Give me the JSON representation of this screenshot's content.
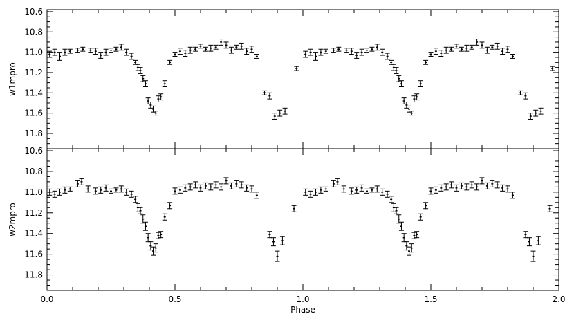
{
  "chart_data": [
    {
      "type": "scatter",
      "title": "",
      "xlabel": "",
      "ylabel": "w1mpro",
      "xlim": [
        0.0,
        2.0
      ],
      "ylim": [
        11.95,
        10.58
      ],
      "y_inverted": true,
      "x_ticks": [],
      "y_ticks": [
        "10.6",
        "10.8",
        "11.0",
        "11.2",
        "11.4",
        "11.6",
        "11.8"
      ],
      "y_tick_values": [
        10.6,
        10.8,
        11.0,
        11.2,
        11.4,
        11.6,
        11.8
      ],
      "error_bars": true,
      "period_repeat": 1.0,
      "series": [
        {
          "x": [
            0.01,
            0.03,
            0.05,
            0.07,
            0.09,
            0.12,
            0.14,
            0.17,
            0.19,
            0.21,
            0.23,
            0.25,
            0.27,
            0.29,
            0.31,
            0.33,
            0.345,
            0.355,
            0.365,
            0.375,
            0.385,
            0.395,
            0.405,
            0.415,
            0.425,
            0.435,
            0.445,
            0.46,
            0.48,
            0.5,
            0.52,
            0.54,
            0.56,
            0.58,
            0.6,
            0.62,
            0.64,
            0.66,
            0.68,
            0.7,
            0.72,
            0.74,
            0.76,
            0.78,
            0.8,
            0.82,
            0.85,
            0.87,
            0.89,
            0.91,
            0.93,
            0.975
          ],
          "y": [
            11.02,
            11.0,
            11.04,
            11.0,
            10.99,
            10.98,
            10.97,
            10.98,
            10.99,
            11.03,
            11.0,
            10.98,
            10.97,
            10.95,
            11.0,
            11.04,
            11.1,
            11.15,
            11.18,
            11.26,
            11.31,
            11.48,
            11.52,
            11.56,
            11.6,
            11.46,
            11.44,
            11.31,
            11.1,
            11.02,
            10.99,
            11.01,
            10.98,
            10.97,
            10.94,
            10.97,
            10.96,
            10.95,
            10.9,
            10.93,
            10.98,
            10.95,
            10.94,
            10.99,
            10.97,
            11.04,
            11.4,
            11.43,
            11.63,
            11.6,
            11.58,
            11.16
          ],
          "err": [
            0.03,
            0.03,
            0.04,
            0.03,
            0.02,
            0.02,
            0.02,
            0.02,
            0.03,
            0.03,
            0.03,
            0.02,
            0.02,
            0.03,
            0.03,
            0.03,
            0.02,
            0.03,
            0.03,
            0.03,
            0.03,
            0.03,
            0.03,
            0.03,
            0.02,
            0.03,
            0.03,
            0.03,
            0.02,
            0.02,
            0.03,
            0.03,
            0.03,
            0.02,
            0.02,
            0.02,
            0.03,
            0.02,
            0.03,
            0.03,
            0.03,
            0.02,
            0.03,
            0.03,
            0.03,
            0.02,
            0.02,
            0.03,
            0.03,
            0.03,
            0.03,
            0.02
          ]
        }
      ]
    },
    {
      "type": "scatter",
      "title": "",
      "xlabel": "Phase",
      "ylabel": "w2mpro",
      "xlim": [
        0.0,
        2.0
      ],
      "ylim": [
        11.95,
        10.58
      ],
      "y_inverted": true,
      "x_ticks": [
        "0.0",
        "0.5",
        "1.0",
        "1.5",
        "2.0"
      ],
      "x_tick_values": [
        0.0,
        0.5,
        1.0,
        1.5,
        2.0
      ],
      "y_ticks": [
        "10.6",
        "10.8",
        "11.0",
        "11.2",
        "11.4",
        "11.6",
        "11.8"
      ],
      "y_tick_values": [
        10.6,
        10.8,
        11.0,
        11.2,
        11.4,
        11.6,
        11.8
      ],
      "error_bars": true,
      "period_repeat": 1.0,
      "series": [
        {
          "x": [
            0.01,
            0.03,
            0.05,
            0.07,
            0.09,
            0.12,
            0.135,
            0.16,
            0.19,
            0.21,
            0.23,
            0.25,
            0.27,
            0.29,
            0.31,
            0.33,
            0.345,
            0.355,
            0.365,
            0.375,
            0.385,
            0.395,
            0.405,
            0.415,
            0.425,
            0.435,
            0.445,
            0.46,
            0.48,
            0.5,
            0.52,
            0.54,
            0.56,
            0.58,
            0.6,
            0.62,
            0.64,
            0.66,
            0.68,
            0.7,
            0.72,
            0.74,
            0.76,
            0.78,
            0.8,
            0.82,
            0.87,
            0.885,
            0.9,
            0.92,
            0.965
          ],
          "y": [
            11.0,
            11.02,
            11.0,
            10.98,
            10.97,
            10.92,
            10.9,
            10.97,
            10.99,
            10.98,
            10.96,
            10.99,
            10.98,
            10.97,
            11.0,
            11.02,
            11.07,
            11.15,
            11.18,
            11.26,
            11.33,
            11.44,
            11.52,
            11.57,
            11.54,
            11.42,
            11.41,
            11.24,
            11.13,
            10.99,
            10.98,
            10.96,
            10.95,
            10.93,
            10.96,
            10.94,
            10.95,
            10.93,
            10.95,
            10.89,
            10.94,
            10.92,
            10.93,
            10.96,
            10.97,
            11.03,
            11.41,
            11.48,
            11.62,
            11.47,
            11.16
          ],
          "err": [
            0.03,
            0.03,
            0.03,
            0.03,
            0.02,
            0.03,
            0.03,
            0.03,
            0.03,
            0.03,
            0.03,
            0.02,
            0.02,
            0.03,
            0.03,
            0.03,
            0.03,
            0.04,
            0.03,
            0.04,
            0.04,
            0.04,
            0.04,
            0.04,
            0.04,
            0.03,
            0.03,
            0.03,
            0.03,
            0.03,
            0.03,
            0.03,
            0.03,
            0.03,
            0.03,
            0.03,
            0.03,
            0.03,
            0.03,
            0.03,
            0.03,
            0.03,
            0.03,
            0.03,
            0.03,
            0.03,
            0.03,
            0.04,
            0.05,
            0.04,
            0.03
          ]
        }
      ]
    }
  ]
}
